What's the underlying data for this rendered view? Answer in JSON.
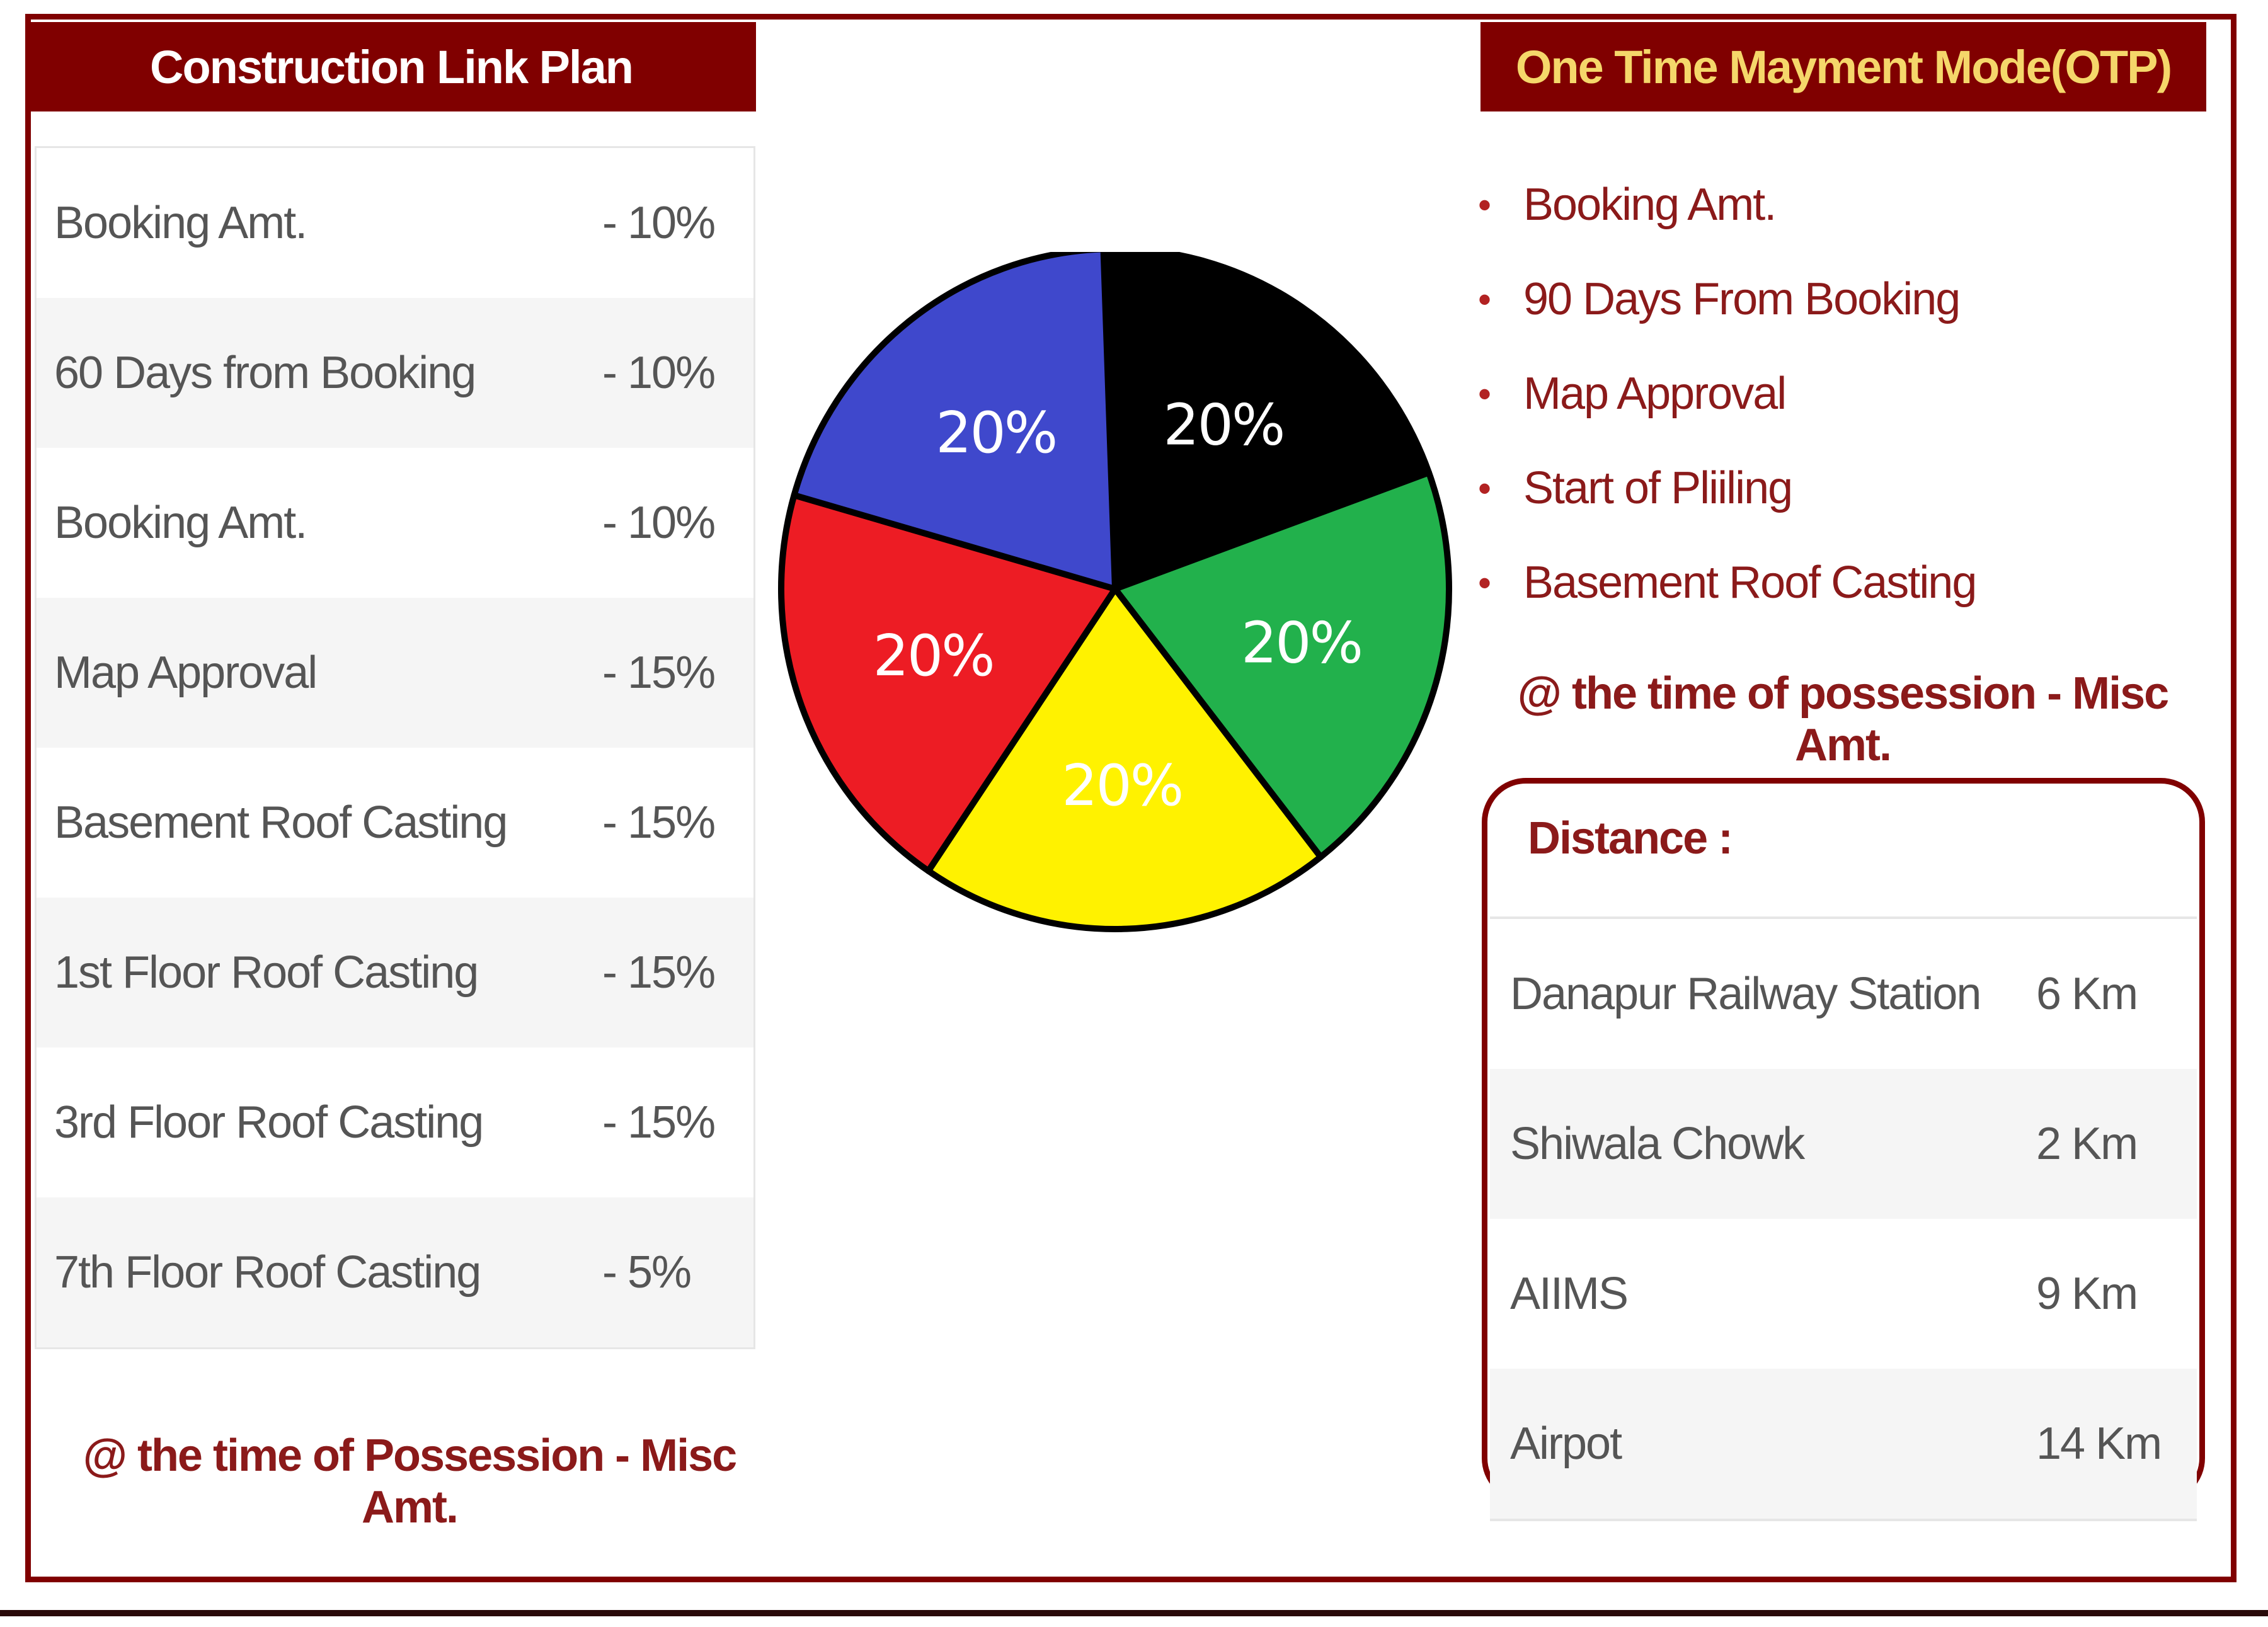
{
  "construction_plan": {
    "title": "Construction Link Plan",
    "rows": [
      {
        "label": "Booking Amt.",
        "value": "- 10%"
      },
      {
        "label": "60 Days from Booking",
        "value": "- 10%"
      },
      {
        "label": "Booking Amt.",
        "value": "- 10%"
      },
      {
        "label": "Map Approval",
        "value": "- 15%"
      },
      {
        "label": "Basement Roof Casting",
        "value": "- 15%"
      },
      {
        "label": "1st Floor Roof Casting",
        "value": "- 15%"
      },
      {
        "label": "3rd Floor Roof Casting",
        "value": "- 15%"
      },
      {
        "label": "7th Floor Roof Casting",
        "value": "- 5%"
      }
    ],
    "possession_note": "@ the time of Possession - Misc Amt."
  },
  "otp": {
    "title": "One Time Mayment Mode(OTP)",
    "items": [
      "Booking Amt.",
      "90 Days From Booking",
      "Map Approval",
      "Start of Pliiling",
      "Basement Roof Casting"
    ],
    "possession_note": "@ the time of possession - Misc Amt."
  },
  "distance": {
    "title": "Distance :",
    "rows": [
      {
        "place": "Danapur Railway Station",
        "km": "6 Km"
      },
      {
        "place": "Shiwala Chowk",
        "km": "2 Km"
      },
      {
        "place": "AIIMS",
        "km": "9 Km"
      },
      {
        "place": "Airpot",
        "km": "14 Km"
      }
    ]
  },
  "chart_data": {
    "type": "pie",
    "values": [
      20,
      20,
      20,
      20,
      20
    ],
    "labels": [
      "20%",
      "20%",
      "20%",
      "20%",
      "20%"
    ],
    "colors": [
      "#000000",
      "#22b14c",
      "#fff200",
      "#ed1c24",
      "#3f48cc"
    ],
    "label_colors": [
      "#ffffff",
      "#ffffff",
      "#ffffff",
      "#ffffff",
      "#ffffff"
    ]
  }
}
